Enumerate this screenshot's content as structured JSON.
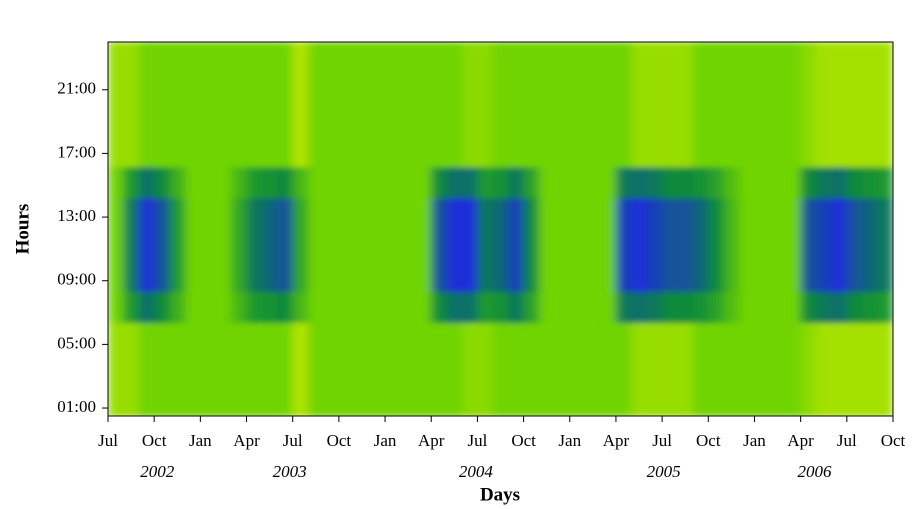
{
  "chart_data": {
    "type": "heatmap",
    "xlabel": "Days",
    "ylabel": "Hours",
    "xlim": [
      0,
      51
    ],
    "ylim": [
      0.5,
      24
    ],
    "xticks": [
      {
        "value": 0,
        "label": "Jul"
      },
      {
        "value": 3,
        "label": "Oct"
      },
      {
        "value": 6,
        "label": "Jan"
      },
      {
        "value": 9,
        "label": "Apr"
      },
      {
        "value": 12,
        "label": "Jul"
      },
      {
        "value": 15,
        "label": "Oct"
      },
      {
        "value": 18,
        "label": "Jan"
      },
      {
        "value": 21,
        "label": "Apr"
      },
      {
        "value": 24,
        "label": "Jul"
      },
      {
        "value": 27,
        "label": "Oct"
      },
      {
        "value": 30,
        "label": "Jan"
      },
      {
        "value": 33,
        "label": "Apr"
      },
      {
        "value": 36,
        "label": "Jul"
      },
      {
        "value": 39,
        "label": "Oct"
      },
      {
        "value": 42,
        "label": "Jan"
      },
      {
        "value": 45,
        "label": "Apr"
      },
      {
        "value": 48,
        "label": "Jul"
      },
      {
        "value": 51,
        "label": "Oct"
      }
    ],
    "year_ticks": [
      {
        "value": 3.2,
        "label": "2002"
      },
      {
        "value": 11.8,
        "label": "2003"
      },
      {
        "value": 23.9,
        "label": "2004"
      },
      {
        "value": 36.1,
        "label": "2005"
      },
      {
        "value": 45.9,
        "label": "2006"
      }
    ],
    "yticks": [
      {
        "value": 1,
        "label": "01:00"
      },
      {
        "value": 5,
        "label": "05:00"
      },
      {
        "value": 9,
        "label": "09:00"
      },
      {
        "value": 13,
        "label": "13:00"
      },
      {
        "value": 17,
        "label": "17:00"
      },
      {
        "value": 21,
        "label": "21:00"
      }
    ],
    "zlim": [
      0,
      3
    ],
    "colors": [
      "#f4f400",
      "#6fd400",
      "#0b8a3a",
      "#1a2fd8"
    ],
    "z": [
      [
        0.7,
        0.7,
        1,
        1,
        1,
        1,
        1,
        1,
        1,
        1,
        1,
        1,
        0.5,
        1,
        1,
        1,
        1,
        1,
        1,
        1,
        1,
        1,
        1,
        0.8,
        0.8,
        1,
        1,
        1,
        1,
        1,
        1,
        1,
        1,
        1,
        0.7,
        0.7,
        0.7,
        0.7,
        1,
        1,
        1,
        1,
        1,
        1,
        1,
        0.8,
        0.6,
        0.6,
        0.6,
        0.6,
        0.6
      ],
      [
        0.7,
        0.7,
        1,
        1,
        1,
        1,
        1,
        1,
        1,
        1,
        1,
        1,
        0.5,
        1,
        1,
        1,
        1,
        1,
        1,
        1,
        1,
        1,
        1,
        0.8,
        0.8,
        1,
        1,
        1,
        1,
        1,
        1,
        1,
        1,
        1,
        0.7,
        0.7,
        0.7,
        0.7,
        1,
        1,
        1,
        1,
        1,
        1,
        1,
        0.8,
        0.6,
        0.6,
        0.6,
        0.6,
        0.6
      ],
      [
        0.7,
        0.7,
        1,
        1,
        1,
        1,
        1,
        1,
        1,
        1,
        1,
        1,
        0.5,
        1,
        1,
        1,
        1,
        1,
        1,
        1,
        1,
        1,
        1,
        0.8,
        0.8,
        1,
        1,
        1,
        1,
        1,
        1,
        1,
        1,
        1,
        0.7,
        0.7,
        0.7,
        0.7,
        1,
        1,
        1,
        1,
        1,
        1,
        1,
        0.8,
        0.6,
        0.6,
        0.6,
        0.6,
        0.6
      ],
      [
        1,
        1.8,
        2.3,
        2,
        1.5,
        1,
        1,
        1,
        1.4,
        1.8,
        1.9,
        2,
        1.4,
        1,
        1,
        1,
        1,
        1,
        1,
        1,
        1,
        2,
        2.3,
        2.3,
        1.8,
        1.9,
        2.2,
        1.7,
        1,
        1,
        1,
        1,
        1,
        2.2,
        2.3,
        2.2,
        2,
        2,
        1.9,
        1.7,
        1.3,
        1,
        1,
        1,
        1,
        2,
        2.2,
        2.3,
        2,
        1.9,
        1.8
      ],
      [
        1,
        2.2,
        3,
        2.6,
        1.8,
        1,
        1,
        1,
        1.6,
        2.2,
        2.4,
        2.6,
        1.6,
        1,
        1,
        1,
        1,
        1,
        1,
        1,
        1,
        2.6,
        3,
        3,
        2.2,
        2.4,
        2.8,
        2,
        1,
        1,
        1,
        1,
        1,
        2.8,
        3,
        2.8,
        2.6,
        2.6,
        2.4,
        2,
        1.4,
        1,
        1,
        1,
        1,
        2.6,
        2.8,
        3,
        2.6,
        2.4,
        2.2
      ],
      [
        1,
        2.2,
        3,
        2.6,
        1.8,
        1,
        1,
        1,
        1.6,
        2.2,
        2.4,
        2.6,
        1.6,
        1,
        1,
        1,
        1,
        1,
        1,
        1,
        1,
        2.6,
        3,
        3,
        2.2,
        2.4,
        2.8,
        2,
        1,
        1,
        1,
        1,
        1,
        2.8,
        3,
        2.8,
        2.6,
        2.6,
        2.4,
        2,
        1.4,
        1,
        1,
        1,
        1,
        2.6,
        2.8,
        3,
        2.6,
        2.4,
        2.2
      ],
      [
        1,
        2.2,
        3,
        2.6,
        1.8,
        1,
        1,
        1,
        1.6,
        2.2,
        2.4,
        2.6,
        1.6,
        1,
        1,
        1,
        1,
        1,
        1,
        1,
        1,
        2.6,
        3,
        3,
        2.2,
        2.4,
        2.8,
        2,
        1,
        1,
        1,
        1,
        1,
        2.8,
        3,
        2.8,
        2.6,
        2.6,
        2.4,
        2,
        1.4,
        1,
        1,
        1,
        1,
        2.6,
        2.8,
        3,
        2.6,
        2.4,
        2.2
      ],
      [
        1,
        1.8,
        2.3,
        2,
        1.5,
        1,
        1,
        1,
        1.4,
        1.8,
        1.9,
        2,
        1.4,
        1,
        1,
        1,
        1,
        1,
        1,
        1,
        1,
        2,
        2.3,
        2.3,
        1.8,
        1.9,
        2.2,
        1.7,
        1,
        1,
        1,
        1,
        1,
        2.2,
        2.3,
        2.2,
        2,
        2,
        1.9,
        1.7,
        1.3,
        1,
        1,
        1,
        1,
        2,
        2.2,
        2.3,
        2,
        1.9,
        1.8
      ],
      [
        0.7,
        0.7,
        1,
        1,
        1,
        1,
        1,
        1,
        1,
        1,
        1,
        1,
        0.5,
        1,
        1,
        1,
        1,
        1,
        1,
        1,
        1,
        1,
        1,
        0.8,
        0.8,
        1,
        1,
        1,
        1,
        1,
        1,
        1,
        1,
        1,
        0.7,
        0.7,
        0.7,
        0.7,
        1,
        1,
        1,
        1,
        1,
        1,
        1,
        0.8,
        0.6,
        0.6,
        0.6,
        0.6,
        0.6
      ],
      [
        0.7,
        0.7,
        1,
        1,
        1,
        1,
        1,
        1,
        1,
        1,
        1,
        1,
        0.5,
        1,
        1,
        1,
        1,
        1,
        1,
        1,
        1,
        1,
        1,
        0.8,
        0.8,
        1,
        1,
        1,
        1,
        1,
        1,
        1,
        1,
        1,
        0.7,
        0.7,
        0.7,
        0.7,
        1,
        1,
        1,
        1,
        1,
        1,
        1,
        0.8,
        0.6,
        0.6,
        0.6,
        0.6,
        0.6
      ],
      [
        0.7,
        0.7,
        1,
        1,
        1,
        1,
        1,
        1,
        1,
        1,
        1,
        1,
        0.5,
        1,
        1,
        1,
        1,
        1,
        1,
        1,
        1,
        1,
        1,
        0.8,
        0.8,
        1,
        1,
        1,
        1,
        1,
        1,
        1,
        1,
        1,
        0.7,
        0.7,
        0.7,
        0.7,
        1,
        1,
        1,
        1,
        1,
        1,
        1,
        0.8,
        0.6,
        0.6,
        0.6,
        0.6,
        0.6
      ],
      [
        0.7,
        0.7,
        1,
        1,
        1,
        1,
        1,
        1,
        1,
        1,
        1,
        1,
        0.5,
        1,
        1,
        1,
        1,
        1,
        1,
        1,
        1,
        1,
        1,
        0.8,
        0.8,
        1,
        1,
        1,
        1,
        1,
        1,
        1,
        1,
        1,
        0.7,
        0.7,
        0.7,
        0.7,
        1,
        1,
        1,
        1,
        1,
        1,
        1,
        0.8,
        0.6,
        0.6,
        0.6,
        0.6,
        0.6
      ]
    ]
  }
}
